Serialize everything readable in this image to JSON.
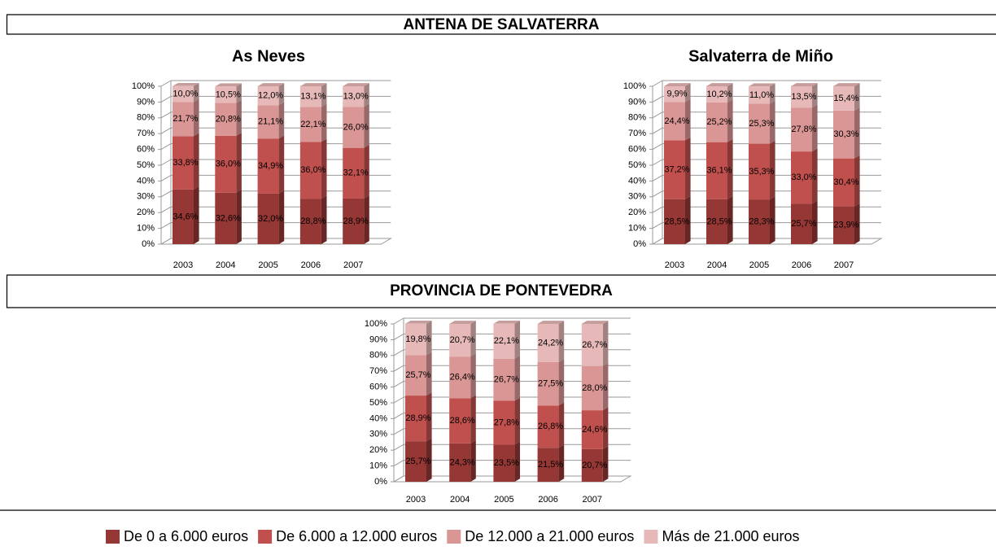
{
  "sections": [
    "ANTENA DE SALVATERRA",
    "PROVINCIA DE PONTEVEDRA"
  ],
  "legend": {
    "entries": [
      {
        "name": "De 0 a 6.000 euros",
        "color": "#953735"
      },
      {
        "name": "De 6.000 a 12.000 euros",
        "color": "#c0504d"
      },
      {
        "name": "De 12.000 a 21.000 euros",
        "color": "#d99694"
      },
      {
        "name": "Más de 21.000 euros",
        "color": "#e6b9b8"
      }
    ]
  },
  "chart_data": [
    {
      "type": "bar",
      "stacked": true,
      "title": "As Neves",
      "categories": [
        "2003",
        "2004",
        "2005",
        "2006",
        "2007"
      ],
      "series": [
        {
          "values": [
            34.6,
            32.6,
            32.0,
            28.8,
            28.9
          ],
          "value_labels": [
            "34,6%",
            "32,6%",
            "32,0%",
            "28,8%",
            "28,9%"
          ]
        },
        {
          "values": [
            33.8,
            36.0,
            34.9,
            36.0,
            32.1
          ],
          "value_labels": [
            "33,8%",
            "36,0%",
            "34,9%",
            "36,0%",
            "32,1%"
          ]
        },
        {
          "values": [
            21.7,
            20.8,
            21.1,
            22.1,
            26.0
          ],
          "value_labels": [
            "21,7%",
            "20,8%",
            "21,1%",
            "22,1%",
            "26,0%"
          ]
        },
        {
          "values": [
            10.0,
            10.5,
            12.0,
            13.1,
            13.0
          ],
          "value_labels": [
            "10,0%",
            "10,5%",
            "12,0%",
            "13,1%",
            "13,0%"
          ]
        }
      ],
      "ylim": [
        0,
        100
      ],
      "yticks": [
        {
          "value": 0,
          "label": "0%"
        },
        {
          "value": 10,
          "label": "10%"
        },
        {
          "value": 20,
          "label": "20%"
        },
        {
          "value": 30,
          "label": "30%"
        },
        {
          "value": 40,
          "label": "40%"
        },
        {
          "value": 50,
          "label": "50%"
        },
        {
          "value": 60,
          "label": "60%"
        },
        {
          "value": 70,
          "label": "70%"
        },
        {
          "value": 80,
          "label": "80%"
        },
        {
          "value": 90,
          "label": "90%"
        },
        {
          "value": 100,
          "label": "100%"
        }
      ],
      "grid": true
    },
    {
      "type": "bar",
      "stacked": true,
      "title": "Salvaterra de Miño",
      "categories": [
        "2003",
        "2004",
        "2005",
        "2006",
        "2007"
      ],
      "series": [
        {
          "values": [
            28.5,
            28.5,
            28.3,
            25.7,
            23.9
          ],
          "value_labels": [
            "28,5%",
            "28,5%",
            "28,3%",
            "25,7%",
            "23,9%"
          ]
        },
        {
          "values": [
            37.2,
            36.1,
            35.3,
            33.0,
            30.4
          ],
          "value_labels": [
            "37,2%",
            "36,1%",
            "35,3%",
            "33,0%",
            "30,4%"
          ]
        },
        {
          "values": [
            24.4,
            25.2,
            25.3,
            27.8,
            30.3
          ],
          "value_labels": [
            "24,4%",
            "25,2%",
            "25,3%",
            "27,8%",
            "30,3%"
          ]
        },
        {
          "values": [
            9.9,
            10.2,
            11.0,
            13.5,
            15.4
          ],
          "value_labels": [
            "9,9%",
            "10,2%",
            "11,0%",
            "13,5%",
            "15,4%"
          ]
        }
      ],
      "ylim": [
        0,
        100
      ],
      "yticks": [
        {
          "value": 0,
          "label": "0%"
        },
        {
          "value": 10,
          "label": "10%"
        },
        {
          "value": 20,
          "label": "20%"
        },
        {
          "value": 30,
          "label": "30%"
        },
        {
          "value": 40,
          "label": "40%"
        },
        {
          "value": 50,
          "label": "50%"
        },
        {
          "value": 60,
          "label": "60%"
        },
        {
          "value": 70,
          "label": "70%"
        },
        {
          "value": 80,
          "label": "80%"
        },
        {
          "value": 90,
          "label": "90%"
        },
        {
          "value": 100,
          "label": "100%"
        }
      ],
      "grid": true
    },
    {
      "type": "bar",
      "stacked": true,
      "categories": [
        "2003",
        "2004",
        "2005",
        "2006",
        "2007"
      ],
      "series": [
        {
          "values": [
            25.7,
            24.3,
            23.5,
            21.5,
            20.7
          ],
          "value_labels": [
            "25,7%",
            "24,3%",
            "23,5%",
            "21,5%",
            "20,7%"
          ]
        },
        {
          "values": [
            28.9,
            28.6,
            27.8,
            26.8,
            24.6
          ],
          "value_labels": [
            "28,9%",
            "28,6%",
            "27,8%",
            "26,8%",
            "24,6%"
          ]
        },
        {
          "values": [
            25.7,
            26.4,
            26.7,
            27.5,
            28.0
          ],
          "value_labels": [
            "25,7%",
            "26,4%",
            "26,7%",
            "27,5%",
            "28,0%"
          ]
        },
        {
          "values": [
            19.8,
            20.7,
            22.1,
            24.2,
            26.7
          ],
          "value_labels": [
            "19,8%",
            "20,7%",
            "22,1%",
            "24,2%",
            "26,7%"
          ]
        }
      ],
      "ylim": [
        0,
        100
      ],
      "yticks": [
        {
          "value": 0,
          "label": "0%"
        },
        {
          "value": 10,
          "label": "10%"
        },
        {
          "value": 20,
          "label": "20%"
        },
        {
          "value": 30,
          "label": "30%"
        },
        {
          "value": 40,
          "label": "40%"
        },
        {
          "value": 50,
          "label": "50%"
        },
        {
          "value": 60,
          "label": "60%"
        },
        {
          "value": 70,
          "label": "70%"
        },
        {
          "value": 80,
          "label": "80%"
        },
        {
          "value": 90,
          "label": "90%"
        },
        {
          "value": 100,
          "label": "100%"
        }
      ],
      "grid": true
    }
  ]
}
